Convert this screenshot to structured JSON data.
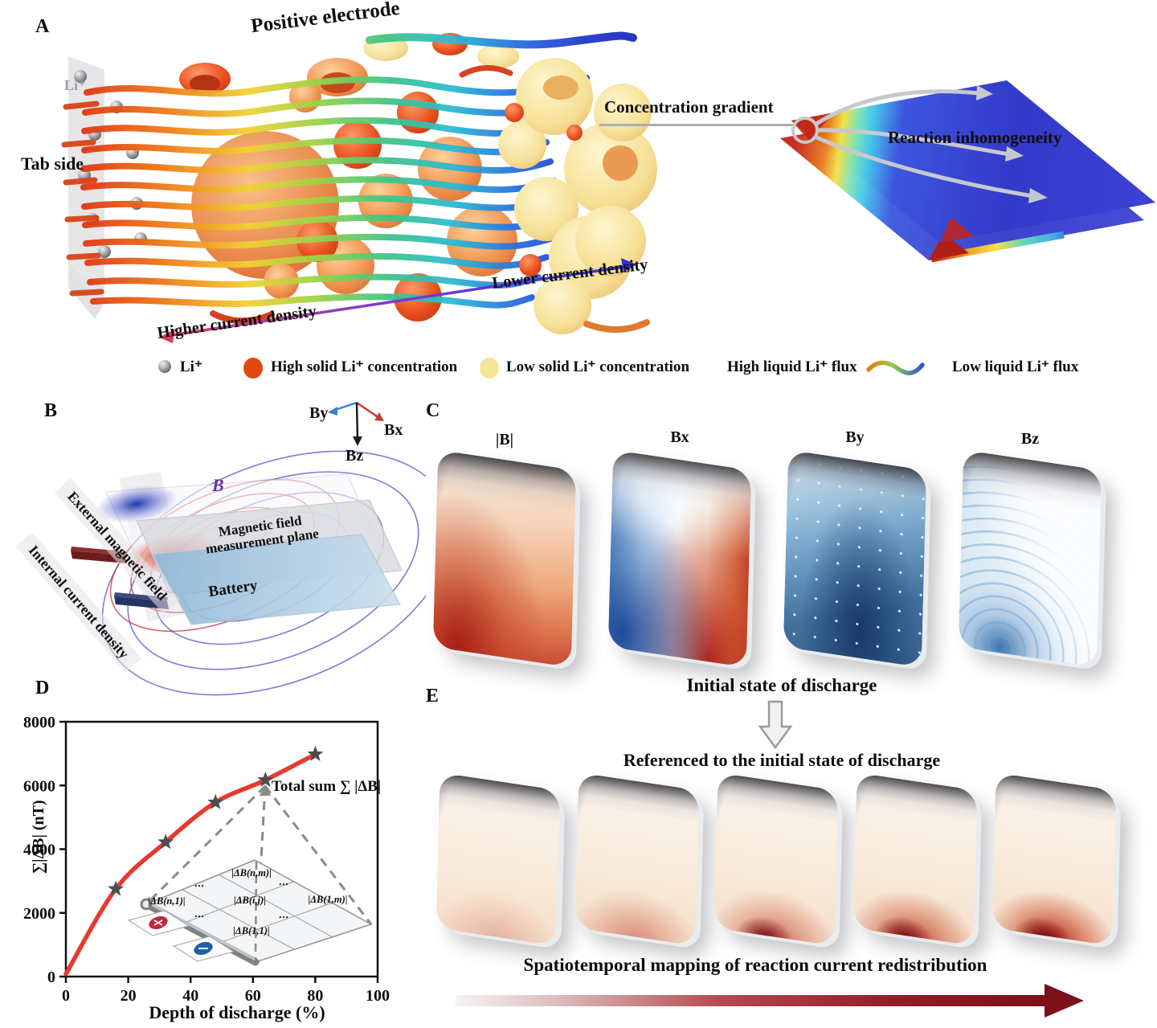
{
  "panels": {
    "A": {
      "label": "A",
      "electrode_title": "Positive electrode",
      "tab_side": "Tab side",
      "li_label": "Li⁺",
      "higher_current": "Higher current density",
      "lower_current": "Lower current density",
      "concentration_gradient": "Concentration gradient",
      "reaction_inhomogeneity": "Reaction inhomogeneity",
      "legend": [
        {
          "icon": "li-sphere",
          "label": "Li⁺"
        },
        {
          "icon": "high-solid-dot",
          "color": "#e1490f",
          "label": "High solid Li⁺ concentration"
        },
        {
          "icon": "low-solid-dot",
          "color": "#f7e394",
          "label": "Low solid Li⁺ concentration"
        },
        {
          "icon": "none",
          "label": "High liquid Li⁺ flux"
        },
        {
          "icon": "flux-line",
          "label": "Low liquid Li⁺ flux"
        }
      ]
    },
    "B": {
      "label": "B",
      "b_vector": "B⃗",
      "axes": {
        "bx": "Bx",
        "by": "By",
        "bz": "Bz"
      },
      "ribbon_external": "External magnetic field",
      "ribbon_internal": "Internal current density",
      "plane_label": "Magnetic field measurement plane",
      "battery_label": "Battery"
    },
    "C": {
      "label": "C",
      "map_labels": [
        "|B|",
        "Bx",
        "By",
        "Bz"
      ],
      "caption": "Initial state of discharge"
    },
    "D": {
      "label": "D",
      "inset": {
        "cell_nm": "|ΔB(n,m)|",
        "cell_n1": "|ΔB(n,1)|",
        "cell_ij": "|ΔB(i,j)|",
        "cell_1m": "|ΔB(1,m)|",
        "cell_11": "|ΔB(1,1)|",
        "dots": "⋯",
        "plus": "+",
        "minus": "−"
      }
    },
    "E": {
      "label": "E",
      "referenced": "Referenced to the initial state of discharge",
      "caption": "Spatiotemporal mapping of reaction current redistribution"
    }
  },
  "colors": {
    "curve_red": "#e8392f",
    "star_gray": "#4d4d4d",
    "high_solid": "#e1490f",
    "low_solid": "#f7e394",
    "dark_red_arrow": "#7c1019"
  },
  "chart_data": {
    "type": "line",
    "x": [
      0,
      16,
      32,
      48,
      64,
      80
    ],
    "y": [
      80,
      2750,
      4220,
      5470,
      6170,
      6980
    ],
    "xlabel": "Depth of discharge (%)",
    "ylabel": "∑|ΔB| (nT)",
    "xlim": [
      0,
      100
    ],
    "ylim": [
      0,
      8000
    ],
    "x_ticks": [
      0,
      20,
      40,
      60,
      80,
      100
    ],
    "y_ticks": [
      0,
      2000,
      4000,
      6000,
      8000
    ],
    "grid": false,
    "legend_position": "none",
    "line_color": "#e8392f",
    "marker": "star",
    "marker_color": "#4d4d4d",
    "annotation": "Total sum ∑ |ΔB|"
  }
}
